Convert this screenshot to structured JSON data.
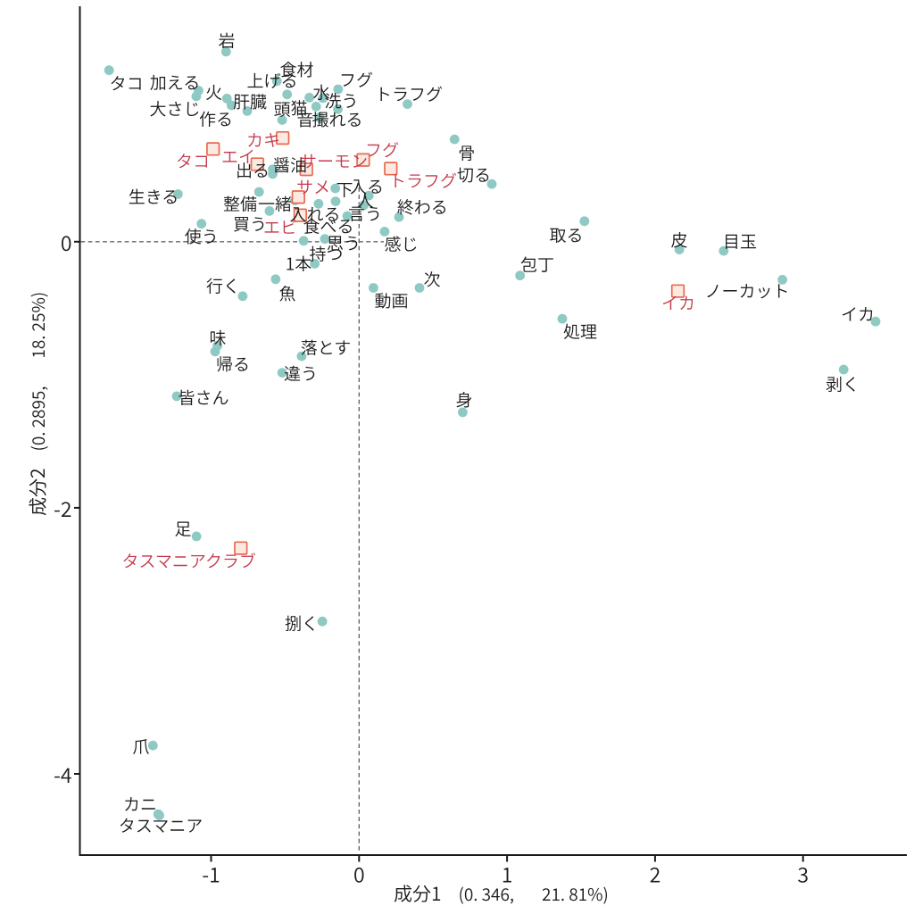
{
  "chart_data": {
    "type": "scatter",
    "title": "",
    "description": "correspondence-analysis biplot of Japanese terms",
    "xlabel": {
      "name": "成分1",
      "stat": "(0. 346,",
      "pct": "21. 81%)"
    },
    "ylabel": {
      "name": "成分2",
      "stat": "(0. 2895,",
      "pct": "18. 25%)"
    },
    "x_ticks": [
      {
        "v": -1,
        "label": "-1"
      },
      {
        "v": 0,
        "label": "0"
      },
      {
        "v": 1,
        "label": "1"
      },
      {
        "v": 2,
        "label": "2"
      },
      {
        "v": 3,
        "label": "3"
      }
    ],
    "y_ticks": [
      {
        "v": 0,
        "label": "0"
      },
      {
        "v": -2,
        "label": "-2"
      },
      {
        "v": -4,
        "label": "-4"
      }
    ],
    "xlim": [
      -1.887,
      3.701
    ],
    "ylim": [
      -4.61,
      1.77
    ],
    "grid": false,
    "legend": null,
    "reference_lines": [
      {
        "axis": "h",
        "at": 0,
        "from": -1.881,
        "to": 0.167,
        "style": "dashed"
      },
      {
        "axis": "v",
        "at": 0,
        "from": 0.408,
        "to": -4.591,
        "style": "dashed"
      }
    ],
    "series": [
      {
        "name": "terms",
        "marker": "circle",
        "marker_color": "#8FC9C3",
        "label_color": "#1A1A1A",
        "points": [
          {
            "t": "岩",
            "x": -0.8987,
            "y": 1.4284,
            "lx": -0.8945,
            "ly": 1.5149
          },
          {
            "t": "タコ",
            "x": -1.6894,
            "y": 1.2888,
            "lx": -1.5724,
            "ly": 1.1929
          },
          {
            "t": "加える",
            "x": -1.085,
            "y": 1.1359,
            "lx": -1.2443,
            "ly": 1.1996
          },
          {
            "t": "大さじ",
            "x": -1.1001,
            "y": 1.0929,
            "lx": -1.2443,
            "ly": 1.0017
          },
          {
            "t": "火",
            "x": -0.8932,
            "y": 1.0761,
            "lx": -0.9813,
            "ly": 1.1271
          },
          {
            "t": "作る",
            "x": -0.8625,
            "y": 1.0252,
            "lx": -0.9668,
            "ly": 0.9245
          },
          {
            "t": "肝臓",
            "x": -0.7557,
            "y": 0.9822,
            "lx": -0.7376,
            "ly": 1.0554
          },
          {
            "t": "上げる",
            "x": -0.5555,
            "y": 1.2076,
            "lx": -0.5869,
            "ly": 1.213
          },
          {
            "t": "食材",
            "x": -0.4861,
            "y": 1.107,
            "lx": -0.421,
            "ly": 1.2969
          },
          {
            "t": "猫",
            "x": -0.3359,
            "y": 1.0835,
            "lx": -0.4059,
            "ly": 1.0084
          },
          {
            "t": "水",
            "x": -0.2443,
            "y": 1.0795,
            "lx": -0.2551,
            "ly": 1.1258
          },
          {
            "t": "フグ",
            "x": -0.1417,
            "y": 1.1459,
            "lx": -0.0199,
            "ly": 1.2211
          },
          {
            "t": "洗う",
            "x": -0.1435,
            "y": 0.997,
            "lx": -0.1194,
            "ly": 1.0621
          },
          {
            "t": "音",
            "x": -0.2901,
            "y": 1.0164,
            "lx": -0.3637,
            "ly": 0.9218
          },
          {
            "t": "頭",
            "x": -0.5199,
            "y": 0.9145,
            "lx": -0.5205,
            "ly": 0.9983
          },
          {
            "t": "撮れる",
            "x": -0.2672,
            "y": 0.9346,
            "lx": -0.1466,
            "ly": 0.9218
          },
          {
            "t": "トラフグ",
            "x": 0.3269,
            "y": 1.0346,
            "lx": 0.3359,
            "ly": 1.1124
          },
          {
            "t": "骨",
            "x": 0.6448,
            "y": 0.7695,
            "lx": 0.7262,
            "ly": 0.6696
          },
          {
            "t": "切る",
            "x": 0.8969,
            "y": 0.4334,
            "lx": 0.7762,
            "ly": 0.5059
          },
          {
            "t": "出る",
            "x": -0.5838,
            "y": 0.5448,
            "lx": -0.7195,
            "ly": 0.5387
          },
          {
            "t": "醤油",
            "x": -0.5838,
            "y": 0.5092,
            "lx": -0.4662,
            "ly": 0.579
          },
          {
            "t": "生きる",
            "x": -1.2244,
            "y": 0.3576,
            "lx": -1.389,
            "ly": 0.3408
          },
          {
            "t": "整備",
            "x": -0.6761,
            "y": 0.3744,
            "lx": -0.804,
            "ly": 0.2872
          },
          {
            "t": "一緒",
            "x": -0.4331,
            "y": 0.3106,
            "lx": -0.5688,
            "ly": 0.2872
          },
          {
            "t": "買う",
            "x": -0.6055,
            "y": 0.2308,
            "lx": -0.7376,
            "ly": 0.1355
          },
          {
            "t": "使う",
            "x": -1.0651,
            "y": 0.1349,
            "lx": -1.0651,
            "ly": 0.0436
          },
          {
            "t": "下",
            "x": -0.1604,
            "y": 0.4005,
            "lx": -0.0983,
            "ly": 0.3945
          },
          {
            "t": "入る",
            "x": 0.0657,
            "y": 0.3462,
            "lx": 0.0525,
            "ly": 0.418
          },
          {
            "t": "人",
            "x": 0.032,
            "y": 0.2744,
            "lx": 0.0404,
            "ly": 0.314
          },
          {
            "t": "言う",
            "x": -0.0802,
            "y": 0.1932,
            "lx": 0.0404,
            "ly": 0.2134
          },
          {
            "t": "入れる",
            "x": -0.2738,
            "y": 0.2851,
            "lx": -0.2973,
            "ly": 0.21
          },
          {
            "t": "食べる",
            "x": -0.1586,
            "y": 0.3033,
            "lx": -0.2069,
            "ly": 0.1194
          },
          {
            "t": "思う",
            "x": -0.2316,
            "y": 0.0208,
            "lx": -0.1043,
            "ly": -0.0081
          },
          {
            "t": "持つ",
            "x": -0.2992,
            "y": -0.165,
            "lx": -0.222,
            "ly": -0.0886
          },
          {
            "t": "1本",
            "x": -0.3745,
            "y": 0.0067,
            "lx": -0.4089,
            "ly": -0.1624
          },
          {
            "t": "魚",
            "x": -0.5639,
            "y": -0.2818,
            "lx": -0.4843,
            "ly": -0.3871
          },
          {
            "t": "行く",
            "x": -0.7865,
            "y": -0.4093,
            "lx": -0.9186,
            "ly": -0.3301
          },
          {
            "t": "終わる",
            "x": 0.2696,
            "y": 0.1852,
            "lx": 0.4282,
            "ly": 0.265
          },
          {
            "t": "感じ",
            "x": 0.1725,
            "y": 0.0765,
            "lx": 0.2847,
            "ly": -0.0148
          },
          {
            "t": "味",
            "x": -0.9566,
            "y": -0.7809,
            "lx": -0.9548,
            "ly": -0.7192
          },
          {
            "t": "帰る",
            "x": -0.9729,
            "y": -0.8252,
            "lx": -0.8522,
            "ly": -0.9178
          },
          {
            "t": "落とす",
            "x": -0.3884,
            "y": -0.8608,
            "lx": -0.225,
            "ly": -0.793
          },
          {
            "t": "違う",
            "x": -0.5193,
            "y": -0.9849,
            "lx": -0.3938,
            "ly": -0.9876
          },
          {
            "t": "皆さん",
            "x": -1.2322,
            "y": -1.1614,
            "lx": -1.0513,
            "ly": -1.1687
          },
          {
            "t": "動画",
            "x": 0.0971,
            "y": -0.3469,
            "lx": 0.2183,
            "ly": -0.4421
          },
          {
            "t": "次",
            "x": 0.4083,
            "y": -0.3469,
            "lx": 0.4928,
            "ly": -0.2798
          },
          {
            "t": "取る",
            "x": 1.5229,
            "y": 0.1543,
            "lx": 1.4005,
            "ly": 0.0523
          },
          {
            "t": "包丁",
            "x": 1.0875,
            "y": -0.2543,
            "lx": 1.2045,
            "ly": -0.1691
          },
          {
            "t": "処理",
            "x": 1.3733,
            "y": -0.5797,
            "lx": 1.494,
            "ly": -0.6723
          },
          {
            "t": "身",
            "x": 0.7002,
            "y": -1.2821,
            "lx": 0.7099,
            "ly": -1.1862
          },
          {
            "t": "皮",
            "x": 2.1641,
            "y": -0.059,
            "lx": 2.1634,
            "ly": 0.0154
          },
          {
            "t": "目玉",
            "x": 2.4638,
            "y": -0.0691,
            "lx": 2.5736,
            "ly": 0.0054
          },
          {
            "t": "ノーカット",
            "x": 2.8607,
            "y": -0.2858,
            "lx": 2.6218,
            "ly": -0.367
          },
          {
            "t": "イカ",
            "x": 3.4903,
            "y": -0.5998,
            "lx": 3.3697,
            "ly": -0.5414
          },
          {
            "t": "剥く",
            "x": 3.2744,
            "y": -0.9608,
            "lx": 3.2672,
            "ly": -1.0681
          },
          {
            "t": "足",
            "x": -1.0989,
            "y": -2.2147,
            "lx": -1.19,
            "ly": -2.155
          },
          {
            "t": "捌く",
            "x": -0.2485,
            "y": -2.8541,
            "lx": -0.3878,
            "ly": -2.8662
          },
          {
            "t": "爪",
            "x": -1.3932,
            "y": -3.7866,
            "lx": -1.4735,
            "ly": -3.792
          },
          {
            "t": "カニ",
            "x": -1.3577,
            "y": -4.3026,
            "lx": -1.4795,
            "ly": -4.2248
          },
          {
            "t": "タスマニア",
            "x": -1.3498,
            "y": -4.312,
            "lx": -1.3408,
            "ly": -4.3851
          }
        ]
      },
      {
        "name": "species",
        "marker": "square",
        "marker_stroke": "#E96A50",
        "marker_fill": "#FBE9E2",
        "label_color": "#C43A4D",
        "points": [
          {
            "t": "タコ",
            "x": -0.9867,
            "y": 0.6971,
            "lx": -1.1236,
            "ly": 0.6092
          },
          {
            "t": "カキ",
            "x": -0.5163,
            "y": 0.7796,
            "lx": -0.6472,
            "ly": 0.7669
          },
          {
            "t": "エイ",
            "x": -0.6876,
            "y": 0.5824,
            "lx": -0.816,
            "ly": 0.6427
          },
          {
            "t": "サーモン",
            "x": -0.3565,
            "y": 0.5441,
            "lx": -0.1707,
            "ly": 0.6092
          },
          {
            "t": "フグ",
            "x": 0.0277,
            "y": 0.6146,
            "lx": 0.155,
            "ly": 0.6931
          },
          {
            "t": "トラフグ",
            "x": 0.2141,
            "y": 0.5495,
            "lx": 0.4324,
            "ly": 0.4616
          },
          {
            "t": "サメ",
            "x": -0.4101,
            "y": 0.3355,
            "lx": -0.3094,
            "ly": 0.4146
          },
          {
            "t": "エビ",
            "x": -0.3975,
            "y": 0.1986,
            "lx": -0.5326,
            "ly": 0.1127
          },
          {
            "t": "イカ",
            "x": 2.1544,
            "y": -0.371,
            "lx": 2.1574,
            "ly": -0.4576
          },
          {
            "t": "タスマニアクラブ",
            "x": -0.7992,
            "y": -2.3033,
            "lx": -1.1496,
            "ly": -2.3965
          }
        ]
      }
    ]
  },
  "colors": {
    "background": "#FFFFFF",
    "axis": "#1A1A1A",
    "dot": "#8FC9C3",
    "square_stroke": "#E96A50",
    "square_fill": "#FBE9E2",
    "black_label": "#1A1A1A",
    "red_label": "#C43A4D",
    "dashed_line": "#666666"
  }
}
